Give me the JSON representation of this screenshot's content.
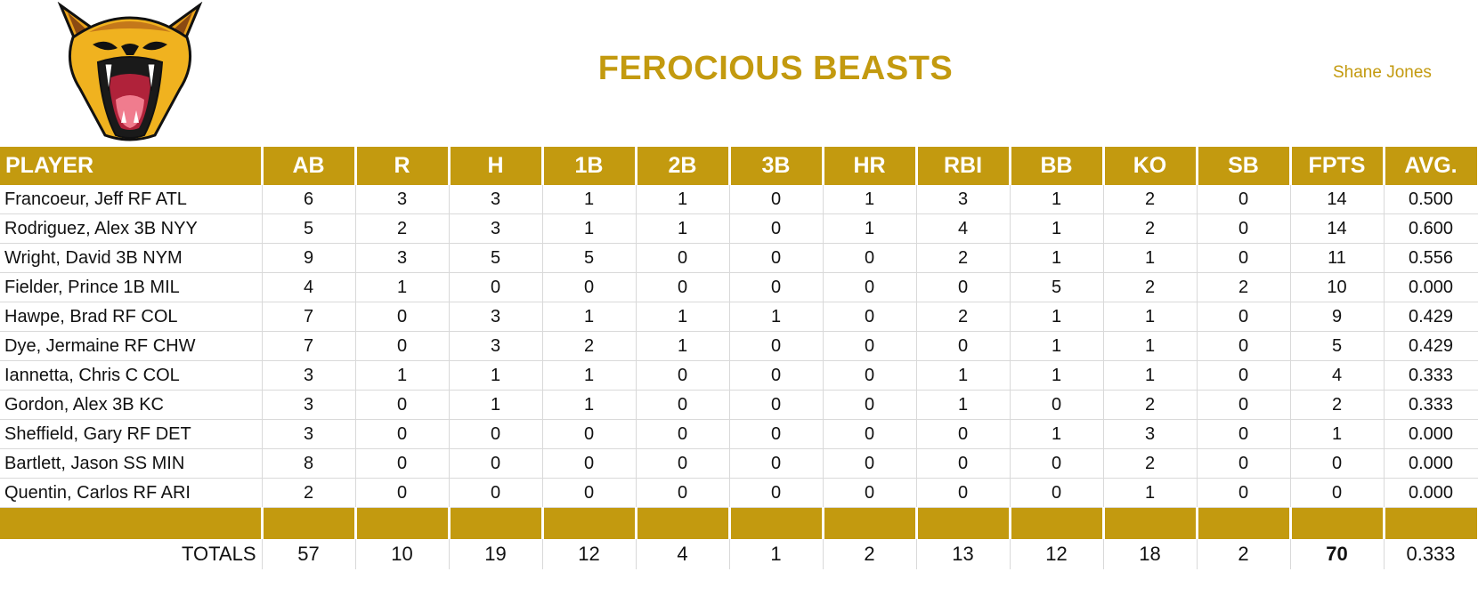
{
  "header": {
    "team_name": "FEROCIOUS BEASTS",
    "owner": "Shane Jones"
  },
  "colors": {
    "accent": "#c39a0f",
    "text": "#111111",
    "grid": "#d9d9d9"
  },
  "table": {
    "columns": [
      "PLAYER",
      "AB",
      "R",
      "H",
      "1B",
      "2B",
      "3B",
      "HR",
      "RBI",
      "BB",
      "KO",
      "SB",
      "FPTS",
      "AVG."
    ],
    "rows": [
      [
        "Francoeur, Jeff RF ATL",
        "6",
        "3",
        "3",
        "1",
        "1",
        "0",
        "1",
        "3",
        "1",
        "2",
        "0",
        "14",
        "0.500"
      ],
      [
        "Rodriguez, Alex 3B NYY",
        "5",
        "2",
        "3",
        "1",
        "1",
        "0",
        "1",
        "4",
        "1",
        "2",
        "0",
        "14",
        "0.600"
      ],
      [
        "Wright, David 3B NYM",
        "9",
        "3",
        "5",
        "5",
        "0",
        "0",
        "0",
        "2",
        "1",
        "1",
        "0",
        "11",
        "0.556"
      ],
      [
        "Fielder, Prince 1B MIL",
        "4",
        "1",
        "0",
        "0",
        "0",
        "0",
        "0",
        "0",
        "5",
        "2",
        "2",
        "10",
        "0.000"
      ],
      [
        "Hawpe, Brad RF COL",
        "7",
        "0",
        "3",
        "1",
        "1",
        "1",
        "0",
        "2",
        "1",
        "1",
        "0",
        "9",
        "0.429"
      ],
      [
        "Dye, Jermaine RF CHW",
        "7",
        "0",
        "3",
        "2",
        "1",
        "0",
        "0",
        "0",
        "1",
        "1",
        "0",
        "5",
        "0.429"
      ],
      [
        "Iannetta, Chris C COL",
        "3",
        "1",
        "1",
        "1",
        "0",
        "0",
        "0",
        "1",
        "1",
        "1",
        "0",
        "4",
        "0.333"
      ],
      [
        "Gordon, Alex 3B KC",
        "3",
        "0",
        "1",
        "1",
        "0",
        "0",
        "0",
        "1",
        "0",
        "2",
        "0",
        "2",
        "0.333"
      ],
      [
        "Sheffield, Gary RF DET",
        "3",
        "0",
        "0",
        "0",
        "0",
        "0",
        "0",
        "0",
        "1",
        "3",
        "0",
        "1",
        "0.000"
      ],
      [
        "Bartlett, Jason SS MIN",
        "8",
        "0",
        "0",
        "0",
        "0",
        "0",
        "0",
        "0",
        "0",
        "2",
        "0",
        "0",
        "0.000"
      ],
      [
        "Quentin, Carlos RF ARI",
        "2",
        "0",
        "0",
        "0",
        "0",
        "0",
        "0",
        "0",
        "0",
        "1",
        "0",
        "0",
        "0.000"
      ]
    ],
    "totals": [
      "TOTALS",
      "57",
      "10",
      "19",
      "12",
      "4",
      "1",
      "2",
      "13",
      "12",
      "18",
      "2",
      "70",
      "0.333"
    ]
  }
}
